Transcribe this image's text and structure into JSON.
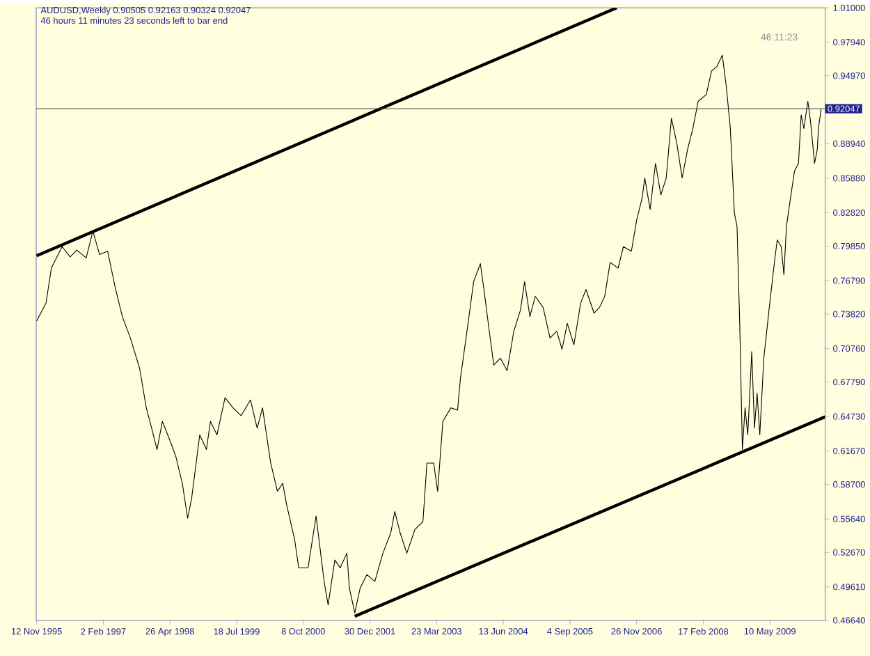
{
  "chart_data": {
    "type": "line",
    "title": "AUDUSD,Weekly 0.90505 0.92163 0.90324 0.92047",
    "subtitle": "46 hours 11 minutes 23 seconds left to bar end",
    "annotations": [
      "46:11:23"
    ],
    "x": [
      "1995-11-12",
      "1996-01-14",
      "1996-02-19",
      "1996-05-01",
      "1996-06-24",
      "1996-08-08",
      "1996-10-10",
      "1996-11-24",
      "1997-01-08",
      "1997-03-03",
      "1997-04-26",
      "1997-06-10",
      "1997-08-03",
      "1997-10-04",
      "1997-11-18",
      "1997-12-24",
      "1998-01-29",
      "1998-03-06",
      "1998-04-29",
      "1998-06-04",
      "1998-07-18",
      "1998-08-23",
      "1998-09-19",
      "1998-11-12",
      "1998-12-27",
      "1999-01-23",
      "1999-03-08",
      "1999-05-01",
      "1999-06-24",
      "1999-08-17",
      "1999-10-19",
      "1999-12-03",
      "2000-01-08",
      "2000-03-03",
      "2000-04-17",
      "2000-05-23",
      "2000-06-18",
      "2000-08-11",
      "2000-09-07",
      "2000-11-09",
      "2001-01-02",
      "2001-02-25",
      "2001-03-24",
      "2001-05-08",
      "2001-06-13",
      "2001-07-28",
      "2001-08-14",
      "2001-09-19",
      "2001-10-25",
      "2001-12-09",
      "2002-02-01",
      "2002-03-27",
      "2002-05-19",
      "2002-06-15",
      "2002-07-21",
      "2002-09-04",
      "2002-10-28",
      "2002-12-21",
      "2003-01-17",
      "2003-03-03",
      "2003-03-30",
      "2003-05-04",
      "2003-06-27",
      "2003-08-11",
      "2003-08-29",
      "2003-10-13",
      "2003-11-27",
      "2004-01-11",
      "2004-02-07",
      "2004-03-14",
      "2004-04-10",
      "2004-05-25",
      "2004-07-09",
      "2004-08-23",
      "2004-10-07",
      "2004-11-03",
      "2004-12-09",
      "2005-01-14",
      "2005-03-08",
      "2005-04-23",
      "2005-06-07",
      "2005-07-13",
      "2005-08-17",
      "2005-10-01",
      "2005-11-15",
      "2005-12-21",
      "2006-02-13",
      "2006-03-21",
      "2006-04-26",
      "2006-06-01",
      "2006-07-25",
      "2006-08-29",
      "2006-10-22",
      "2006-11-27",
      "2007-01-02",
      "2007-01-20",
      "2007-02-25",
      "2007-04-02",
      "2007-05-08",
      "2007-06-13",
      "2007-07-18",
      "2007-08-23",
      "2007-09-28",
      "2007-11-03",
      "2007-12-09",
      "2008-01-14",
      "2008-03-08",
      "2008-04-13",
      "2008-05-19",
      "2008-06-24",
      "2008-07-21",
      "2008-08-17",
      "2008-09-13",
      "2008-10-01",
      "2008-10-19",
      "2008-11-06",
      "2008-11-24",
      "2008-12-12",
      "2009-01-08",
      "2009-01-26",
      "2009-02-13",
      "2009-03-03",
      "2009-03-30",
      "2009-05-04",
      "2009-06-10",
      "2009-06-28",
      "2009-07-25",
      "2009-08-12",
      "2009-08-29",
      "2009-09-25",
      "2009-10-22",
      "2009-11-18",
      "2009-12-06",
      "2009-12-24",
      "2010-01-20",
      "2010-02-07",
      "2010-03-06",
      "2010-03-24",
      "2010-04-01",
      "2010-04-19"
    ],
    "series": [
      {
        "color": "#000000",
        "values": [
          0.732,
          0.748,
          0.779,
          0.798,
          0.789,
          0.795,
          0.788,
          0.812,
          0.791,
          0.794,
          0.76,
          0.736,
          0.717,
          0.69,
          0.655,
          0.637,
          0.618,
          0.643,
          0.625,
          0.612,
          0.588,
          0.557,
          0.575,
          0.631,
          0.618,
          0.643,
          0.631,
          0.664,
          0.655,
          0.648,
          0.662,
          0.637,
          0.655,
          0.606,
          0.581,
          0.588,
          0.569,
          0.538,
          0.513,
          0.513,
          0.559,
          0.501,
          0.48,
          0.52,
          0.513,
          0.526,
          0.495,
          0.473,
          0.495,
          0.507,
          0.501,
          0.526,
          0.544,
          0.563,
          0.544,
          0.526,
          0.547,
          0.554,
          0.606,
          0.606,
          0.581,
          0.643,
          0.655,
          0.653,
          0.68,
          0.723,
          0.767,
          0.783,
          0.757,
          0.72,
          0.693,
          0.699,
          0.688,
          0.723,
          0.742,
          0.767,
          0.736,
          0.754,
          0.744,
          0.717,
          0.723,
          0.707,
          0.73,
          0.711,
          0.748,
          0.76,
          0.739,
          0.744,
          0.754,
          0.784,
          0.779,
          0.798,
          0.794,
          0.822,
          0.841,
          0.859,
          0.831,
          0.872,
          0.844,
          0.859,
          0.912,
          0.89,
          0.859,
          0.884,
          0.903,
          0.927,
          0.933,
          0.954,
          0.958,
          0.968,
          0.94,
          0.903,
          0.828,
          0.816,
          0.73,
          0.618,
          0.655,
          0.631,
          0.705,
          0.637,
          0.668,
          0.631,
          0.699,
          0.742,
          0.785,
          0.804,
          0.798,
          0.773,
          0.816,
          0.841,
          0.865,
          0.872,
          0.915,
          0.903,
          0.927,
          0.909,
          0.872,
          0.884,
          0.903,
          0.92
        ]
      },
      {
        "type": "line",
        "color": "#000000",
        "x": [
          "1995-11-12",
          "2006-07-15"
        ],
        "values": [
          0.79,
          1.01
        ]
      },
      {
        "type": "line",
        "color": "#000000",
        "x": [
          "2001-09-19",
          "2010-05-16"
        ],
        "values": [
          0.47,
          0.647
        ]
      }
    ],
    "xlim": [
      "1995-11-09",
      "2010-05-16"
    ],
    "xticks": [
      {
        "value": "1995-11-12",
        "label": "12 Nov 1995"
      },
      {
        "value": "1997-02-02",
        "label": "2 Feb 1997"
      },
      {
        "value": "1998-04-26",
        "label": "26 Apr 1998"
      },
      {
        "value": "1999-07-18",
        "label": "18 Jul 1999"
      },
      {
        "value": "2000-10-08",
        "label": "8 Oct 2000"
      },
      {
        "value": "2001-12-30",
        "label": "30 Dec 2001"
      },
      {
        "value": "2003-03-23",
        "label": "23 Mar 2003"
      },
      {
        "value": "2004-06-13",
        "label": "13 Jun 2004"
      },
      {
        "value": "2005-09-04",
        "label": "4 Sep 2005"
      },
      {
        "value": "2006-11-26",
        "label": "26 Nov 2006"
      },
      {
        "value": "2008-02-17",
        "label": "17 Feb 2008"
      },
      {
        "value": "2009-05-10",
        "label": "10 May 2009"
      }
    ],
    "ylim": [
      0.4664,
      1.01
    ],
    "yticks": [
      {
        "value": 1.01,
        "label": "1.01000"
      },
      {
        "value": 0.9794,
        "label": "0.97940"
      },
      {
        "value": 0.9497,
        "label": "0.94970"
      },
      {
        "value": 0.8894,
        "label": "0.88940"
      },
      {
        "value": 0.8588,
        "label": "0.85880"
      },
      {
        "value": 0.8282,
        "label": "0.82820"
      },
      {
        "value": 0.7985,
        "label": "0.79850"
      },
      {
        "value": 0.7679,
        "label": "0.76790"
      },
      {
        "value": 0.7382,
        "label": "0.73820"
      },
      {
        "value": 0.7076,
        "label": "0.70760"
      },
      {
        "value": 0.6779,
        "label": "0.67790"
      },
      {
        "value": 0.6473,
        "label": "0.64730"
      },
      {
        "value": 0.6167,
        "label": "0.61670"
      },
      {
        "value": 0.587,
        "label": "0.58700"
      },
      {
        "value": 0.5564,
        "label": "0.55640"
      },
      {
        "value": 0.5267,
        "label": "0.52670"
      },
      {
        "value": 0.4961,
        "label": "0.49610"
      },
      {
        "value": 0.4664,
        "label": "0.46640"
      }
    ],
    "ref_lines": [
      {
        "axis": "y",
        "value": 0.92047,
        "label": "0.92047",
        "color": "#404040"
      }
    ],
    "grid": false
  }
}
